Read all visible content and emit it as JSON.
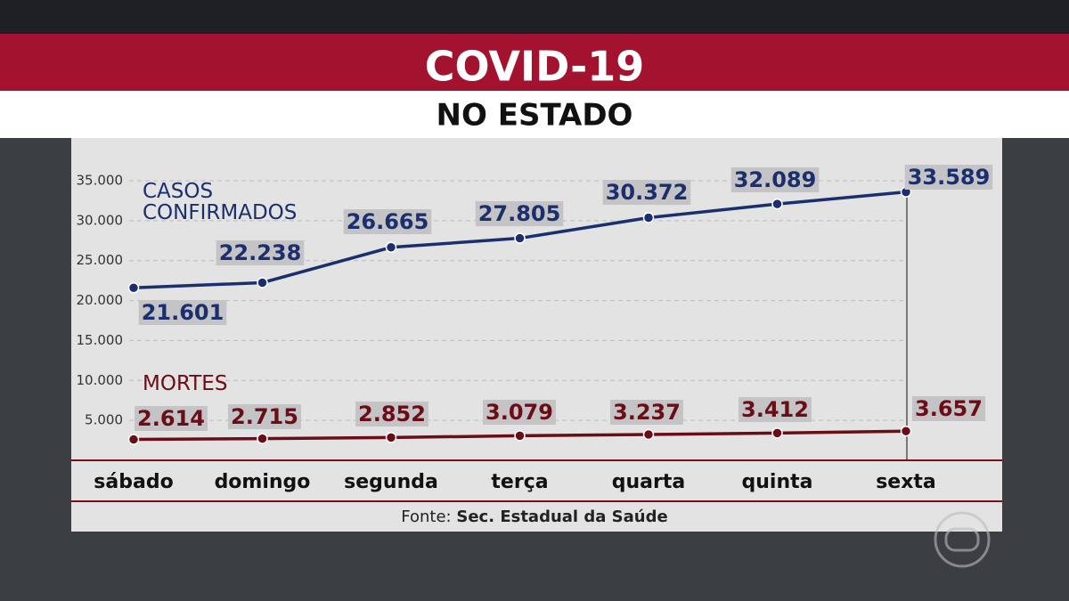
{
  "title": "COVID-19",
  "subtitle": "NO ESTADO",
  "chart_data": {
    "type": "line",
    "categories": [
      "sábado",
      "domingo",
      "segunda",
      "terça",
      "quarta",
      "quinta",
      "sexta"
    ],
    "series": [
      {
        "name": "CASOS CONFIRMADOS",
        "color": "#1b2f6e",
        "values": [
          21601,
          22238,
          26665,
          27805,
          30372,
          32089,
          33589
        ],
        "value_labels": [
          "21.601",
          "22.238",
          "26.665",
          "27.805",
          "30.372",
          "32.089",
          "33.589"
        ]
      },
      {
        "name": "MORTES",
        "color": "#6a0d16",
        "values": [
          2614,
          2715,
          2852,
          3079,
          3237,
          3412,
          3657
        ],
        "value_labels": [
          "2.614",
          "2.715",
          "2.852",
          "3.079",
          "3.237",
          "3.412",
          "3.657"
        ]
      }
    ],
    "ylim": [
      0,
      35000
    ],
    "yticks": [
      {
        "value": 5000,
        "label": "5.000"
      },
      {
        "value": 10000,
        "label": "10.000"
      },
      {
        "value": 15000,
        "label": "15.000"
      },
      {
        "value": 20000,
        "label": "20.000"
      },
      {
        "value": 25000,
        "label": "25.000"
      },
      {
        "value": 30000,
        "label": "30.000"
      },
      {
        "value": 35000,
        "label": "35.000"
      }
    ],
    "grid": true
  },
  "source_label": "Fonte:",
  "source": "Sec. Estadual da Saúde"
}
